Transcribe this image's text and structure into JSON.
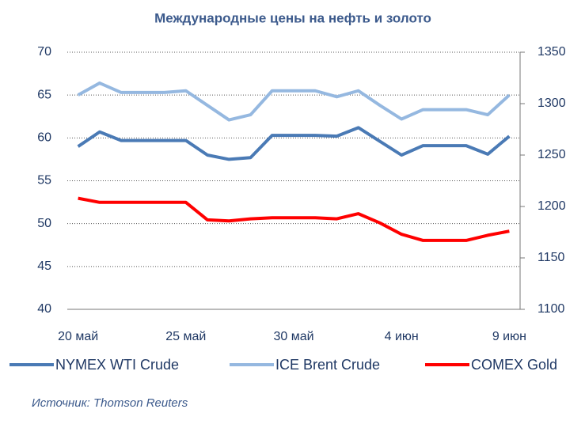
{
  "chart_data": {
    "type": "line",
    "title": "Международные цены на нефть и золото",
    "source": "Источник: Thomson Reuters",
    "categories": [
      "20 май",
      null,
      null,
      null,
      null,
      "25 май",
      null,
      null,
      null,
      null,
      "30 май",
      null,
      null,
      null,
      null,
      "4 июн",
      null,
      null,
      null,
      null,
      "9 июн"
    ],
    "series": [
      {
        "name": "NYMEX WTI Crude",
        "color": "#4a7ab5",
        "values": [
          59.0,
          60.7,
          59.7,
          59.7,
          59.7,
          59.7,
          58.0,
          57.5,
          57.7,
          60.3,
          60.3,
          60.3,
          60.2,
          61.2,
          59.6,
          58.0,
          59.1,
          59.1,
          59.1,
          58.1,
          60.2
        ]
      },
      {
        "name": "ICE Brent Crude",
        "color": "#95b8e0",
        "values": [
          65.0,
          66.4,
          65.3,
          65.3,
          65.3,
          65.5,
          63.8,
          62.1,
          62.7,
          65.5,
          65.5,
          65.5,
          64.8,
          65.5,
          63.8,
          62.2,
          63.3,
          63.3,
          63.3,
          62.7,
          65.0
        ]
      },
      {
        "name": "COMEX Gold",
        "color": "#ff0000",
        "axis": "y2",
        "values": [
          1208,
          1204,
          1204,
          1204,
          1204,
          1204,
          1187,
          1186,
          1188,
          1189,
          1189,
          1189,
          1188,
          1193,
          1184,
          1173,
          1167,
          1167,
          1167,
          1172,
          1176
        ]
      }
    ],
    "ylim": [
      40,
      70
    ],
    "yticks": [
      40,
      45,
      50,
      55,
      60,
      65,
      70
    ],
    "y2lim": [
      1100,
      1350
    ],
    "y2ticks": [
      1100,
      1150,
      1200,
      1250,
      1300,
      1350
    ],
    "grid": true,
    "legend": "bottom"
  }
}
